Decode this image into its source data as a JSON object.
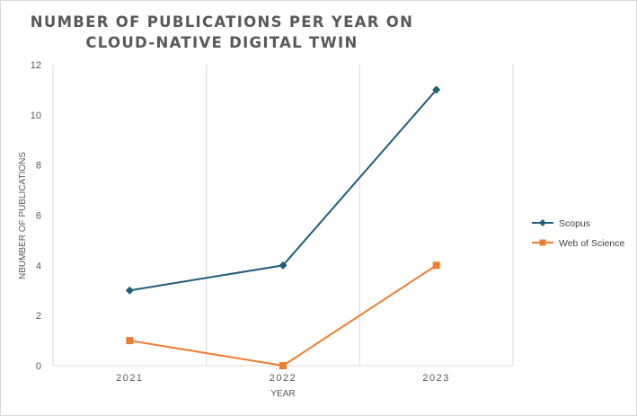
{
  "chart_data": {
    "type": "line",
    "title_lines": [
      "NUMBER OF PUBLICATIONS PER YEAR ON",
      "CLOUD-NATIVE DIGITAL TWIN"
    ],
    "xlabel": "YEAR",
    "ylabel": "NBUMBER OF PUBLICATIONS",
    "categories": [
      "2021",
      "2022",
      "2023"
    ],
    "ylim": [
      0,
      12
    ],
    "yticks": [
      0,
      2,
      4,
      6,
      8,
      10,
      12
    ],
    "grid": "vertical",
    "legend_position": "right",
    "series": [
      {
        "name": "Scopus",
        "values": [
          3,
          4,
          11
        ],
        "color": "#1f5c7a",
        "marker": "diamond"
      },
      {
        "name": "Web of Science",
        "values": [
          1,
          0,
          4
        ],
        "color": "#ed7d31",
        "marker": "square"
      }
    ]
  }
}
